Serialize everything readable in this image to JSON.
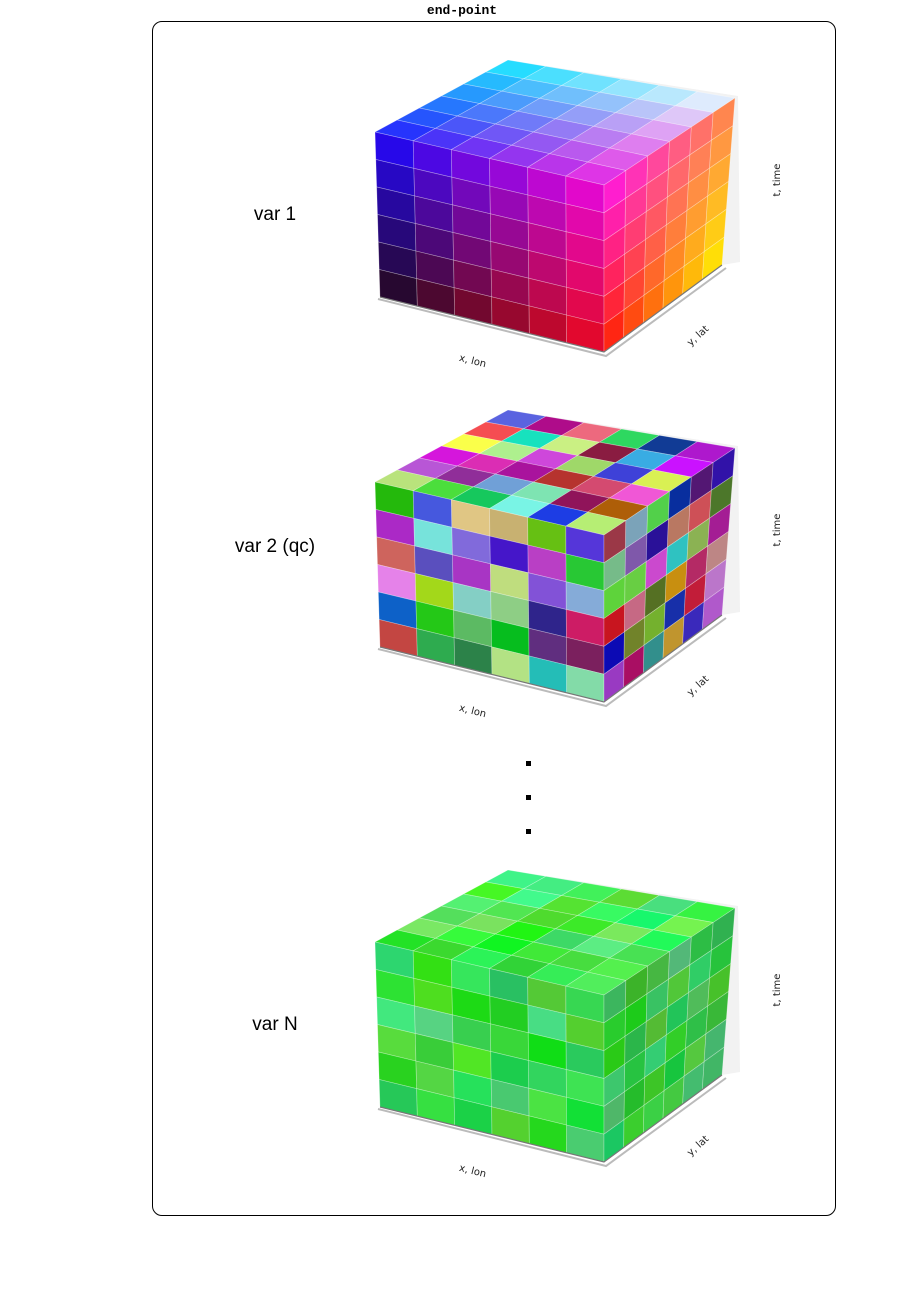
{
  "title": "end-point",
  "panels": [
    {
      "label": "var 1",
      "x_axis": "x, lon",
      "y_axis": "y, lat",
      "t_axis": "t, time",
      "coloring": "gradient"
    },
    {
      "label": "var 2 (qc)",
      "x_axis": "x, lon",
      "y_axis": "y, lat",
      "t_axis": "t, time",
      "coloring": "random"
    },
    {
      "label": "var N",
      "x_axis": "x, lon",
      "y_axis": "y, lat",
      "t_axis": "t, time",
      "coloring": "green"
    }
  ],
  "ellipsis_count": 3
}
